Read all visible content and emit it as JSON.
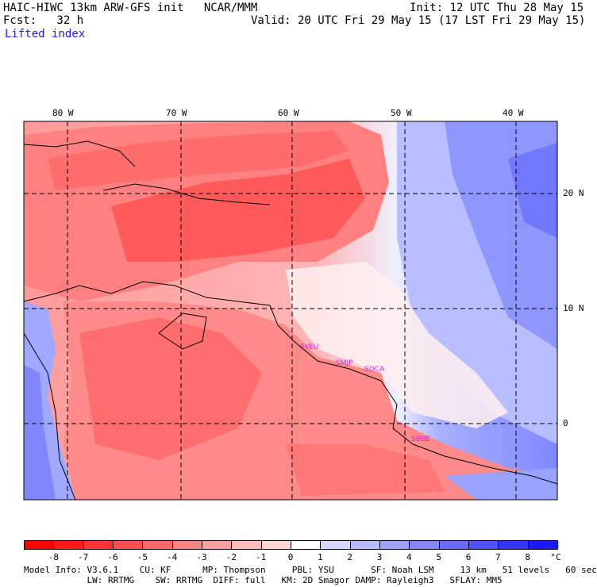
{
  "header": {
    "title": "HAIC-HIWC 13km ARW-GFS init   NCAR/MMM",
    "init": "Init: 12 UTC Thu 28 May 15",
    "fcst": "Fcst:   32 h",
    "valid": "Valid: 20 UTC Fri 29 May 15 (17 LST Fri 29 May 15)",
    "field": "Lifted index"
  },
  "axes": {
    "lon_labels": [
      "80 W",
      "70 W",
      "60 W",
      "50 W",
      "40 W"
    ],
    "lat_labels": [
      "20 N",
      "10 N",
      "0"
    ]
  },
  "stations": [
    "SYEU",
    "SMJP",
    "SOCA",
    "SBBE"
  ],
  "colorbar": {
    "ticks": [
      "-8",
      "-7",
      "-6",
      "-5",
      "-4",
      "-3",
      "-2",
      "-1",
      "0",
      "1",
      "2",
      "3",
      "4",
      "5",
      "6",
      "7",
      "8"
    ],
    "unit": "°C",
    "colors": [
      "#ff1a1a",
      "#ff3535",
      "#ff5050",
      "#ff6a6a",
      "#ff8585",
      "#ffa0a0",
      "#ffbaba",
      "#ffd6d6",
      "#ffffff",
      "#d6d6ff",
      "#babaff",
      "#a0a0ff",
      "#8585ff",
      "#6a6aff",
      "#5050ff",
      "#3535ff",
      "#1a1aff"
    ]
  },
  "model_info": {
    "line1": "Model Info: V3.6.1    CU: KF      MP: Thompson     PBL: YSU       SF: Noah LSM     13 km   51 levels   60 sec",
    "line2": "            LW: RRTMG    SW: RRTMG  DIFF: full   KM: 2D Smagor DAMP: Rayleigh3   SFLAY: MM5"
  }
}
